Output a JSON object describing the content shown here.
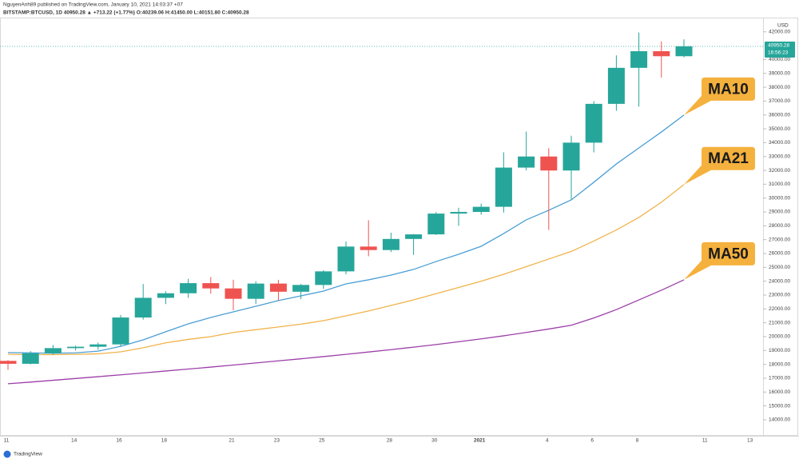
{
  "chart_data": {
    "type": "candlestick",
    "header": "NguyenAnh89 published on TradingView.com, January 10, 2021 14:03:37 +07",
    "symbol_line": "BITSTAMP:BTCUSD, 1D  40950.28 ▲ +713.22 (+1.77%) O:40239.06 H:41450.00 L:40151.80 C:40950.28",
    "currency": "USD",
    "footer": "TradingView",
    "last_price": 40950.28,
    "countdown": "16:56:23",
    "categories": [
      "11",
      null,
      null,
      "14",
      null,
      "16",
      null,
      "18",
      null,
      null,
      "21",
      null,
      "23",
      null,
      "25",
      null,
      null,
      "28",
      null,
      "30",
      null,
      "2021",
      null,
      null,
      "4",
      null,
      "6",
      null,
      "8",
      null,
      null,
      "11",
      null,
      "13"
    ],
    "open": [
      18250,
      18040,
      18800,
      19170,
      19270,
      19440,
      21380,
      22800,
      23130,
      23860,
      23480,
      22730,
      23830,
      23240,
      23730,
      24710,
      26500,
      26250,
      27050,
      27380,
      28880,
      29000,
      29370,
      32200,
      33000,
      31990,
      34000,
      36800,
      39400,
      40600,
      40239.06,
      null,
      null,
      null
    ],
    "high": [
      18300,
      18950,
      19400,
      19350,
      19570,
      21560,
      23800,
      23280,
      24170,
      24300,
      24100,
      24000,
      24100,
      23800,
      24790,
      26870,
      28400,
      27500,
      27400,
      28990,
      29300,
      29600,
      33300,
      34800,
      33600,
      34500,
      37000,
      40300,
      41950,
      41300,
      41450,
      null,
      null,
      null
    ],
    "low": [
      17600,
      18000,
      18700,
      19000,
      19050,
      19300,
      21230,
      22350,
      22800,
      23100,
      21900,
      22350,
      22600,
      22700,
      23450,
      24500,
      25800,
      26100,
      25900,
      27340,
      28000,
      28800,
      28950,
      32000,
      27700,
      29900,
      33300,
      36300,
      36600,
      38700,
      40151.8,
      null,
      null,
      null
    ],
    "close": [
      18040,
      18800,
      19170,
      19270,
      19440,
      21380,
      22800,
      23130,
      23860,
      23480,
      22730,
      23830,
      23240,
      23730,
      24710,
      26500,
      26250,
      27050,
      27380,
      28880,
      29000,
      29370,
      32200,
      33000,
      31990,
      34000,
      36800,
      39400,
      40600,
      40239.06,
      40950.28,
      null,
      null,
      null
    ],
    "up_color": "#26a69a",
    "down_color": "#ef5350",
    "ma_series": [
      {
        "name": "MA10",
        "color": "#4a9fd5",
        "values": [
          18850,
          18830,
          18800,
          18830,
          18950,
          19300,
          19770,
          20350,
          20920,
          21380,
          21790,
          22190,
          22600,
          22940,
          23290,
          23810,
          24100,
          24440,
          24850,
          25420,
          25940,
          26520,
          27440,
          28430,
          29120,
          29870,
          31140,
          32460,
          33620,
          34770,
          35990,
          null,
          null,
          null
        ]
      },
      {
        "name": "MA21",
        "color": "#f0b34a",
        "values": [
          18730,
          18700,
          18700,
          18720,
          18760,
          18900,
          19200,
          19550,
          19800,
          20000,
          20300,
          20500,
          20700,
          20900,
          21150,
          21500,
          21850,
          22250,
          22650,
          23100,
          23550,
          24000,
          24500,
          25050,
          25600,
          26150,
          26900,
          27700,
          28600,
          29700,
          30980,
          null,
          null,
          null
        ]
      },
      {
        "name": "MA50",
        "color": "#9c3fa8",
        "values": [
          16600,
          16720,
          16850,
          16980,
          17110,
          17240,
          17380,
          17520,
          17660,
          17800,
          17950,
          18100,
          18250,
          18400,
          18560,
          18720,
          18890,
          19060,
          19240,
          19430,
          19630,
          19840,
          20060,
          20300,
          20550,
          20820,
          21350,
          21950,
          22650,
          23350,
          24100,
          null,
          null,
          null
        ]
      }
    ],
    "ylim": [
      13130,
      42680
    ],
    "yticks": [
      {
        "value": 14000,
        "label": "14000.00"
      },
      {
        "value": 15000,
        "label": "15000.00"
      },
      {
        "value": 16000,
        "label": "16000.00"
      },
      {
        "value": 17000,
        "label": "17000.00"
      },
      {
        "value": 18000,
        "label": "18000.00"
      },
      {
        "value": 19000,
        "label": "19000.00"
      },
      {
        "value": 20000,
        "label": "20000.00"
      },
      {
        "value": 21000,
        "label": "21000.00"
      },
      {
        "value": 22000,
        "label": "22000.00"
      },
      {
        "value": 23000,
        "label": "23000.00"
      },
      {
        "value": 24000,
        "label": "24000.00"
      },
      {
        "value": 25000,
        "label": "25000.00"
      },
      {
        "value": 26000,
        "label": "26000.00"
      },
      {
        "value": 27000,
        "label": "27000.00"
      },
      {
        "value": 28000,
        "label": "28000.00"
      },
      {
        "value": 29000,
        "label": "29000.00"
      },
      {
        "value": 30000,
        "label": "30000.00"
      },
      {
        "value": 31000,
        "label": "31000.00"
      },
      {
        "value": 32000,
        "label": "32000.00"
      },
      {
        "value": 33000,
        "label": "33000.00"
      },
      {
        "value": 34000,
        "label": "34000.00"
      },
      {
        "value": 35000,
        "label": "35000.00"
      },
      {
        "value": 36000,
        "label": "36000.00"
      },
      {
        "value": 37000,
        "label": "37000.00"
      },
      {
        "value": 38000,
        "label": "38000.00"
      },
      {
        "value": 39000,
        "label": "39000.00"
      },
      {
        "value": 40000,
        "label": "40000.00"
      },
      {
        "value": 42000,
        "label": "42000.00"
      }
    ]
  }
}
